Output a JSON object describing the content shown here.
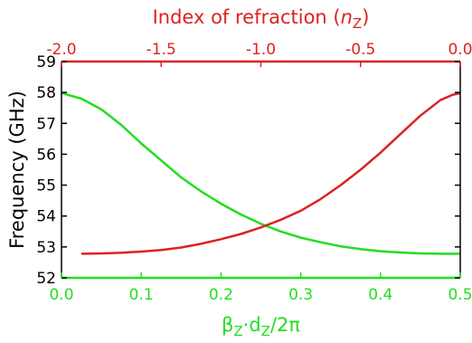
{
  "chart_data": {
    "type": "line",
    "title": "",
    "ylabel": "Frequency (GHz)",
    "ylim": [
      52,
      59
    ],
    "y_ticks": [
      "52",
      "53",
      "54",
      "55",
      "56",
      "57",
      "58",
      "59"
    ],
    "y_tick_values": [
      52,
      53,
      54,
      55,
      56,
      57,
      58,
      59
    ],
    "bottom_axis": {
      "label": "β",
      "label_sub": "Z",
      "label_mid": "·d",
      "label_sub2": "Z",
      "label_tail": "/2π",
      "color": "#22dd22",
      "lim": [
        0.0,
        0.5
      ],
      "ticks": [
        "0.0",
        "0.1",
        "0.2",
        "0.3",
        "0.4",
        "0.5"
      ],
      "tick_values": [
        0.0,
        0.1,
        0.2,
        0.3,
        0.4,
        0.5
      ]
    },
    "top_axis": {
      "label": "Index of refraction (",
      "label_var": "n",
      "label_sub": "Z",
      "label_tail": ")",
      "color": "#dd2222",
      "lim": [
        -2.0,
        0.0
      ],
      "ticks": [
        "-2.0",
        "-1.5",
        "-1.0",
        "-0.5",
        "0.0"
      ],
      "tick_values": [
        -2.0,
        -1.5,
        -1.0,
        -0.5,
        0.0
      ]
    },
    "series": [
      {
        "color": "#22dd22",
        "x": [
          0.0,
          0.025,
          0.05,
          0.075,
          0.1,
          0.125,
          0.15,
          0.175,
          0.2,
          0.225,
          0.25,
          0.275,
          0.3,
          0.325,
          0.35,
          0.375,
          0.4,
          0.425,
          0.45,
          0.475,
          0.5
        ],
        "y": [
          57.98,
          57.8,
          57.45,
          56.95,
          56.35,
          55.8,
          55.25,
          54.8,
          54.4,
          54.05,
          53.75,
          53.5,
          53.3,
          53.15,
          53.02,
          52.93,
          52.86,
          52.82,
          52.79,
          52.78,
          52.78
        ]
      },
      {
        "color": "#dd2222",
        "x": [
          0.025,
          0.05,
          0.075,
          0.1,
          0.125,
          0.15,
          0.175,
          0.2,
          0.225,
          0.25,
          0.275,
          0.3,
          0.325,
          0.35,
          0.375,
          0.4,
          0.425,
          0.45,
          0.475,
          0.49,
          0.5
        ],
        "y": [
          52.78,
          52.79,
          52.81,
          52.85,
          52.9,
          52.98,
          53.1,
          53.25,
          53.42,
          53.63,
          53.88,
          54.17,
          54.55,
          55.0,
          55.5,
          56.05,
          56.65,
          57.25,
          57.75,
          57.92,
          57.98
        ]
      }
    ]
  }
}
